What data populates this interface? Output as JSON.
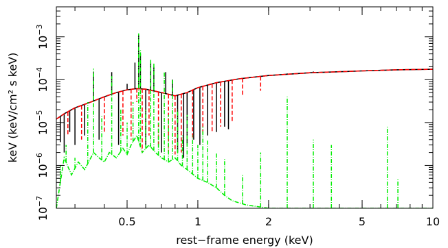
{
  "chart_data": {
    "type": "line",
    "xlabel": "rest−frame energy (keV)",
    "ylabel": "keV (keV/cm² s keV)",
    "x_scale": "log",
    "y_scale": "log",
    "xlim": [
      0.25,
      10
    ],
    "ylim": [
      1e-07,
      0.005
    ],
    "x_ticks": [
      {
        "value": 0.5,
        "label": "0.5"
      },
      {
        "value": 1,
        "label": "1"
      },
      {
        "value": 2,
        "label": "2"
      },
      {
        "value": 5,
        "label": "5"
      },
      {
        "value": 10,
        "label": "10"
      }
    ],
    "y_ticks": [
      {
        "value": 1e-07,
        "mantissa": "10",
        "exp": "−7"
      },
      {
        "value": 1e-06,
        "mantissa": "10",
        "exp": "−6"
      },
      {
        "value": 1e-05,
        "mantissa": "10",
        "exp": "−5"
      },
      {
        "value": 0.0001,
        "mantissa": "10",
        "exp": "−4"
      },
      {
        "value": 0.001,
        "mantissa": "10",
        "exp": "−3"
      }
    ],
    "grid": false,
    "series": [
      {
        "color": "#000000",
        "style": "solid",
        "points": [
          [
            0.25,
            1.2e-05
          ],
          [
            0.27,
            1.6e-05
          ],
          [
            0.3,
            2.2e-05
          ],
          [
            0.35,
            3e-05
          ],
          [
            0.4,
            4e-05
          ],
          [
            0.45,
            5e-05
          ],
          [
            0.5,
            5.8e-05
          ],
          [
            0.55,
            6.2e-05
          ],
          [
            0.6,
            6e-05
          ],
          [
            0.7,
            5e-05
          ],
          [
            0.8,
            4.2e-05
          ],
          [
            0.9,
            5e-05
          ],
          [
            1.0,
            6.5e-05
          ],
          [
            1.2,
            8.5e-05
          ],
          [
            1.5,
            0.000105
          ],
          [
            2,
            0.000125
          ],
          [
            3,
            0.000145
          ],
          [
            5,
            0.00016
          ],
          [
            7,
            0.00017
          ],
          [
            10,
            0.000175
          ]
        ],
        "lines": [
          [
            0.26,
            3.5e-06
          ],
          [
            0.27,
            2e-06
          ],
          [
            0.285,
            6e-06
          ],
          [
            0.3,
            3e-06
          ],
          [
            0.33,
            5e-06
          ],
          [
            0.36,
            0.00015
          ],
          [
            0.38,
            4e-06
          ],
          [
            0.43,
            0.00015
          ],
          [
            0.46,
            3e-06
          ],
          [
            0.5,
            8e-05
          ],
          [
            0.54,
            0.00025
          ],
          [
            0.56,
            0.0011
          ],
          [
            0.57,
            0.0004
          ],
          [
            0.6,
            3e-06
          ],
          [
            0.63,
            0.00025
          ],
          [
            0.65,
            0.0002
          ],
          [
            0.7,
            2e-06
          ],
          [
            0.73,
            0.00015
          ],
          [
            0.78,
            0.0001
          ],
          [
            0.82,
            2e-06
          ],
          [
            0.87,
            1.5e-06
          ],
          [
            0.9,
            3e-06
          ],
          [
            0.96,
            4e-06
          ],
          [
            1.02,
            3e-06
          ],
          [
            1.1,
            5e-06
          ],
          [
            1.2,
            6e-06
          ],
          [
            1.3,
            8e-06
          ],
          [
            1.35,
            7e-06
          ],
          [
            1.85,
            0.00012
          ],
          [
            2.4,
            0.00014
          ],
          [
            3.1,
            0.000155
          ]
        ]
      },
      {
        "color": "#ff0000",
        "style": "dashed",
        "points": [
          [
            0.25,
            1.2e-05
          ],
          [
            0.27,
            1.6e-05
          ],
          [
            0.3,
            2.2e-05
          ],
          [
            0.35,
            3e-05
          ],
          [
            0.4,
            4e-05
          ],
          [
            0.45,
            5e-05
          ],
          [
            0.5,
            5.8e-05
          ],
          [
            0.55,
            6.2e-05
          ],
          [
            0.6,
            6e-05
          ],
          [
            0.7,
            5e-05
          ],
          [
            0.8,
            4.2e-05
          ],
          [
            0.9,
            5e-05
          ],
          [
            1.0,
            6.5e-05
          ],
          [
            1.2,
            8.5e-05
          ],
          [
            1.5,
            0.000105
          ],
          [
            2,
            0.000125
          ],
          [
            3,
            0.000145
          ],
          [
            5,
            0.00016
          ],
          [
            7,
            0.00017
          ],
          [
            10,
            0.000175
          ]
        ],
        "lines": [
          [
            0.28,
            5e-06
          ],
          [
            0.32,
            4e-06
          ],
          [
            0.4,
            6e-06
          ],
          [
            0.48,
            5e-06
          ],
          [
            0.52,
            4e-06
          ],
          [
            0.55,
            3e-05
          ],
          [
            0.58,
            2e-06
          ],
          [
            0.62,
            5e-06
          ],
          [
            0.68,
            3e-06
          ],
          [
            0.75,
            2e-06
          ],
          [
            0.8,
            1.8e-06
          ],
          [
            0.85,
            2e-06
          ],
          [
            0.95,
            4e-06
          ],
          [
            1.05,
            5e-06
          ],
          [
            1.15,
            6e-06
          ],
          [
            1.25,
            8e-06
          ],
          [
            1.4,
            1e-05
          ],
          [
            1.55,
            4e-05
          ],
          [
            1.85,
            5.5e-05
          ]
        ]
      },
      {
        "color": "#00ee00",
        "style": "dash-dot",
        "points": [
          [
            0.25,
            1e-07
          ],
          [
            0.26,
            4e-07
          ],
          [
            0.27,
            1.5e-06
          ],
          [
            0.29,
            6e-07
          ],
          [
            0.31,
            1.2e-06
          ],
          [
            0.33,
            8e-07
          ],
          [
            0.36,
            2e-06
          ],
          [
            0.38,
            1.5e-06
          ],
          [
            0.4,
            1.2e-06
          ],
          [
            0.42,
            2e-06
          ],
          [
            0.45,
            1.5e-06
          ],
          [
            0.48,
            2.5e-06
          ],
          [
            0.5,
            1.8e-06
          ],
          [
            0.52,
            3e-06
          ],
          [
            0.55,
            5e-06
          ],
          [
            0.58,
            2e-06
          ],
          [
            0.62,
            3e-06
          ],
          [
            0.66,
            2e-06
          ],
          [
            0.7,
            1.5e-06
          ],
          [
            0.75,
            1.2e-06
          ],
          [
            0.8,
            1.5e-06
          ],
          [
            0.85,
            1e-06
          ],
          [
            0.9,
            8e-07
          ],
          [
            1.0,
            5e-07
          ],
          [
            1.1,
            4e-07
          ],
          [
            1.2,
            3e-07
          ],
          [
            1.3,
            2e-07
          ],
          [
            1.4,
            1.5e-07
          ],
          [
            1.6,
            1.2e-07
          ],
          [
            2,
            1e-07
          ],
          [
            10,
            1e-07
          ]
        ],
        "lines": [
          [
            0.26,
            1e-06
          ],
          [
            0.275,
            3e-06
          ],
          [
            0.3,
            1.5e-06
          ],
          [
            0.34,
            3e-05
          ],
          [
            0.36,
            0.00018
          ],
          [
            0.39,
            1.5e-05
          ],
          [
            0.43,
            0.00012
          ],
          [
            0.47,
            2e-05
          ],
          [
            0.5,
            1e-05
          ],
          [
            0.53,
            3e-05
          ],
          [
            0.56,
            0.0012
          ],
          [
            0.57,
            0.0005
          ],
          [
            0.6,
            2e-05
          ],
          [
            0.63,
            0.0003
          ],
          [
            0.65,
            0.00025
          ],
          [
            0.68,
            1e-05
          ],
          [
            0.72,
            0.00015
          ],
          [
            0.75,
            1.5e-05
          ],
          [
            0.78,
            0.0001
          ],
          [
            0.82,
            2e-05
          ],
          [
            0.86,
            5e-06
          ],
          [
            0.9,
            1.5e-05
          ],
          [
            0.95,
            5e-06
          ],
          [
            1.0,
            3e-06
          ],
          [
            1.05,
            8e-06
          ],
          [
            1.1,
            4e-06
          ],
          [
            1.2,
            2e-06
          ],
          [
            1.3,
            1.5e-06
          ],
          [
            1.55,
            6e-07
          ],
          [
            1.85,
            2e-06
          ],
          [
            2.4,
            4e-05
          ],
          [
            3.1,
            4e-06
          ],
          [
            3.7,
            3e-06
          ],
          [
            6.4,
            8e-06
          ],
          [
            7.1,
            5e-07
          ]
        ]
      }
    ]
  }
}
